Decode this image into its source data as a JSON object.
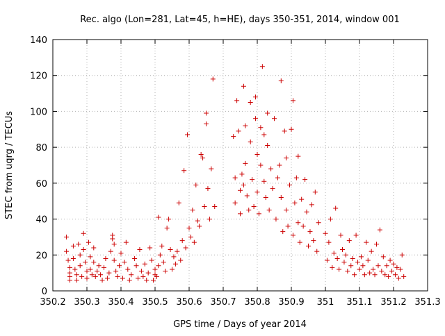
{
  "chart_data": {
    "type": "scatter",
    "title": "Rec. algo (Lon=281, Lat=45, h=HE), days 350-351, 2014, window 001",
    "xlabel": "GPS time / Days of year 2014",
    "ylabel": "STEC from uqrg / TECUs",
    "xlim": [
      350.2,
      351.3
    ],
    "ylim": [
      0,
      140
    ],
    "x_ticks": [
      "350.2",
      "350.3",
      "350.4",
      "350.5",
      "350.6",
      "350.7",
      "350.8",
      "350.9",
      "351",
      "351.1",
      "351.2",
      "351.3"
    ],
    "x_tick_values": [
      350.2,
      350.3,
      350.4,
      350.5,
      350.6,
      350.7,
      350.8,
      350.9,
      351.0,
      351.1,
      351.2,
      351.3
    ],
    "y_ticks": [
      "0",
      "20",
      "40",
      "60",
      "80",
      "100",
      "120",
      "140"
    ],
    "y_tick_values": [
      0,
      20,
      40,
      60,
      80,
      100,
      120,
      140
    ],
    "grid": true,
    "marker": "+",
    "color": "#cc0000",
    "series": [
      {
        "points": [
          [
            350.24,
            30
          ],
          [
            350.24,
            22
          ],
          [
            350.245,
            17
          ],
          [
            350.25,
            13
          ],
          [
            350.25,
            10
          ],
          [
            350.25,
            8
          ],
          [
            350.25,
            6
          ],
          [
            350.26,
            25
          ],
          [
            350.26,
            18
          ],
          [
            350.265,
            12
          ],
          [
            350.27,
            9
          ],
          [
            350.27,
            6
          ],
          [
            350.275,
            26
          ],
          [
            350.28,
            20
          ],
          [
            350.28,
            14
          ],
          [
            350.285,
            8
          ],
          [
            350.29,
            32
          ],
          [
            350.29,
            23
          ],
          [
            350.295,
            16
          ],
          [
            350.3,
            11
          ],
          [
            350.3,
            7
          ],
          [
            350.305,
            27
          ],
          [
            350.31,
            19
          ],
          [
            350.31,
            12
          ],
          [
            350.315,
            9
          ],
          [
            350.32,
            16
          ],
          [
            350.32,
            24
          ],
          [
            350.325,
            8
          ],
          [
            350.33,
            11
          ],
          [
            350.335,
            14
          ],
          [
            350.34,
            9
          ],
          [
            350.345,
            6
          ],
          [
            350.35,
            13
          ],
          [
            350.355,
            18
          ],
          [
            350.36,
            7
          ],
          [
            350.365,
            10
          ],
          [
            350.37,
            22
          ],
          [
            350.375,
            31
          ],
          [
            350.375,
            29
          ],
          [
            350.38,
            26
          ],
          [
            350.38,
            17
          ],
          [
            350.385,
            11
          ],
          [
            350.39,
            8
          ],
          [
            350.395,
            14
          ],
          [
            350.4,
            21
          ],
          [
            350.405,
            7
          ],
          [
            350.41,
            16
          ],
          [
            350.415,
            27
          ],
          [
            350.42,
            12
          ],
          [
            350.425,
            6
          ],
          [
            350.43,
            9
          ],
          [
            350.44,
            18
          ],
          [
            350.445,
            14
          ],
          [
            350.45,
            7
          ],
          [
            350.455,
            23
          ],
          [
            350.46,
            11
          ],
          [
            350.465,
            8
          ],
          [
            350.47,
            15
          ],
          [
            350.475,
            6
          ],
          [
            350.48,
            10
          ],
          [
            350.485,
            24
          ],
          [
            350.49,
            17
          ],
          [
            350.495,
            6
          ],
          [
            350.5,
            12
          ],
          [
            350.5,
            9
          ],
          [
            350.505,
            8
          ],
          [
            350.51,
            14
          ],
          [
            350.51,
            41
          ],
          [
            350.515,
            20
          ],
          [
            350.52,
            25
          ],
          [
            350.525,
            16
          ],
          [
            350.53,
            11
          ],
          [
            350.535,
            35
          ],
          [
            350.54,
            40
          ],
          [
            350.545,
            23
          ],
          [
            350.55,
            12
          ],
          [
            350.555,
            19
          ],
          [
            350.56,
            15
          ],
          [
            350.565,
            22
          ],
          [
            350.57,
            49
          ],
          [
            350.575,
            17
          ],
          [
            350.58,
            28
          ],
          [
            350.585,
            67
          ],
          [
            350.59,
            24
          ],
          [
            350.595,
            87
          ],
          [
            350.6,
            35
          ],
          [
            350.605,
            30
          ],
          [
            350.61,
            45
          ],
          [
            350.615,
            27
          ],
          [
            350.62,
            59
          ],
          [
            350.625,
            39
          ],
          [
            350.63,
            36
          ],
          [
            350.635,
            76
          ],
          [
            350.64,
            74
          ],
          [
            350.645,
            47
          ],
          [
            350.65,
            99
          ],
          [
            350.65,
            93
          ],
          [
            350.655,
            57
          ],
          [
            350.66,
            40
          ],
          [
            350.665,
            68
          ],
          [
            350.67,
            118
          ],
          [
            350.675,
            47
          ],
          [
            350.73,
            86
          ],
          [
            350.735,
            63
          ],
          [
            350.735,
            49
          ],
          [
            350.74,
            106
          ],
          [
            350.745,
            89
          ],
          [
            350.75,
            56
          ],
          [
            350.75,
            43
          ],
          [
            350.755,
            65
          ],
          [
            350.76,
            59
          ],
          [
            350.76,
            114
          ],
          [
            350.765,
            71
          ],
          [
            350.765,
            92
          ],
          [
            350.77,
            53
          ],
          [
            350.775,
            45
          ],
          [
            350.78,
            83
          ],
          [
            350.78,
            105
          ],
          [
            350.785,
            62
          ],
          [
            350.79,
            47
          ],
          [
            350.795,
            108
          ],
          [
            350.795,
            96
          ],
          [
            350.8,
            76
          ],
          [
            350.8,
            55
          ],
          [
            350.805,
            43
          ],
          [
            350.81,
            91
          ],
          [
            350.81,
            70
          ],
          [
            350.815,
            125
          ],
          [
            350.82,
            87
          ],
          [
            350.82,
            61
          ],
          [
            350.825,
            52
          ],
          [
            350.83,
            99
          ],
          [
            350.83,
            81
          ],
          [
            350.835,
            45
          ],
          [
            350.84,
            68
          ],
          [
            350.845,
            57
          ],
          [
            350.85,
            96
          ],
          [
            350.855,
            40
          ],
          [
            350.86,
            63
          ],
          [
            350.865,
            70
          ],
          [
            350.87,
            52
          ],
          [
            350.87,
            117
          ],
          [
            350.875,
            33
          ],
          [
            350.88,
            89
          ],
          [
            350.885,
            74
          ],
          [
            350.885,
            45
          ],
          [
            350.89,
            36
          ],
          [
            350.895,
            59
          ],
          [
            350.9,
            90
          ],
          [
            350.905,
            106
          ],
          [
            350.905,
            31
          ],
          [
            350.91,
            49
          ],
          [
            350.915,
            63
          ],
          [
            350.92,
            75
          ],
          [
            350.92,
            38
          ],
          [
            350.925,
            27
          ],
          [
            350.93,
            51
          ],
          [
            350.935,
            36
          ],
          [
            350.94,
            62
          ],
          [
            350.945,
            44
          ],
          [
            350.95,
            25
          ],
          [
            350.955,
            33
          ],
          [
            350.96,
            48
          ],
          [
            350.965,
            28
          ],
          [
            350.97,
            55
          ],
          [
            350.975,
            22
          ],
          [
            350.98,
            38
          ],
          [
            351.0,
            32
          ],
          [
            351.005,
            17
          ],
          [
            351.01,
            27
          ],
          [
            351.015,
            40
          ],
          [
            351.02,
            13
          ],
          [
            351.025,
            21
          ],
          [
            351.03,
            46
          ],
          [
            351.035,
            18
          ],
          [
            351.04,
            12
          ],
          [
            351.045,
            31
          ],
          [
            351.05,
            23
          ],
          [
            351.055,
            16
          ],
          [
            351.06,
            20
          ],
          [
            351.065,
            11
          ],
          [
            351.07,
            28
          ],
          [
            351.075,
            14
          ],
          [
            351.08,
            18
          ],
          [
            351.085,
            9
          ],
          [
            351.09,
            31
          ],
          [
            351.095,
            16
          ],
          [
            351.1,
            12
          ],
          [
            351.105,
            19
          ],
          [
            351.11,
            14
          ],
          [
            351.115,
            9
          ],
          [
            351.12,
            27
          ],
          [
            351.125,
            17
          ],
          [
            351.13,
            10
          ],
          [
            351.135,
            22
          ],
          [
            351.14,
            12
          ],
          [
            351.145,
            9
          ],
          [
            351.15,
            26
          ],
          [
            351.155,
            14
          ],
          [
            351.16,
            34
          ],
          [
            351.165,
            11
          ],
          [
            351.17,
            19
          ],
          [
            351.175,
            9
          ],
          [
            351.18,
            14
          ],
          [
            351.185,
            8
          ],
          [
            351.19,
            17
          ],
          [
            351.195,
            11
          ],
          [
            351.2,
            15
          ],
          [
            351.205,
            9
          ],
          [
            351.21,
            13
          ],
          [
            351.215,
            7
          ],
          [
            351.22,
            12
          ],
          [
            351.225,
            20
          ],
          [
            351.23,
            8
          ]
        ]
      }
    ]
  }
}
